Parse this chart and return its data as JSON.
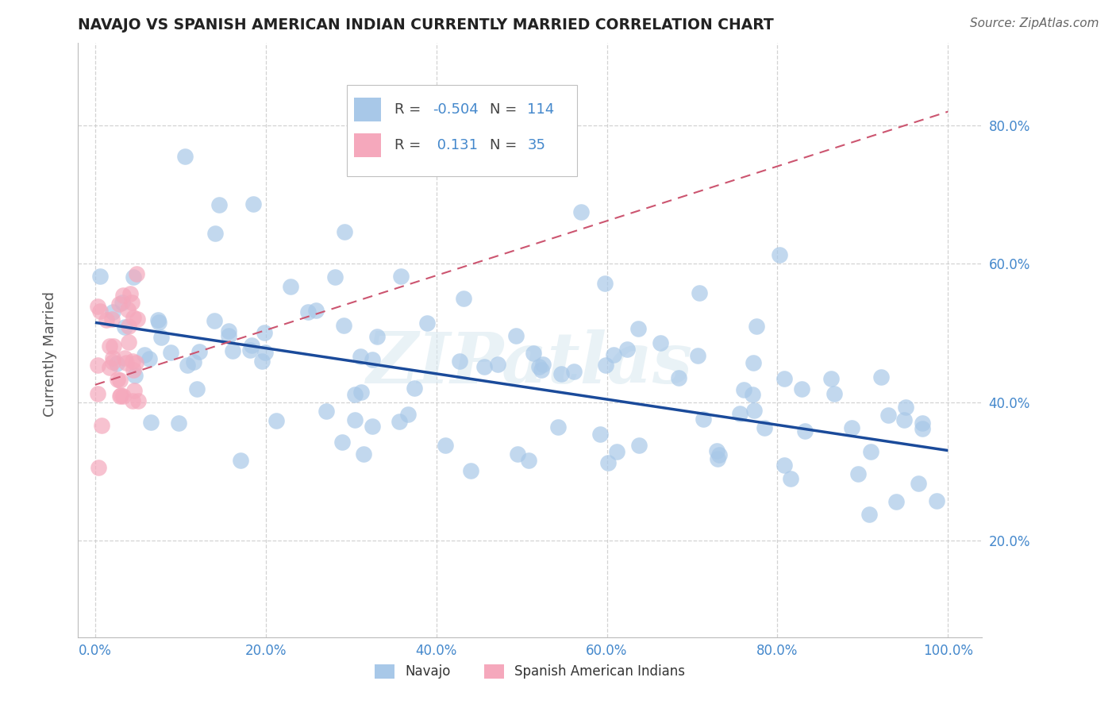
{
  "title": "NAVAJO VS SPANISH AMERICAN INDIAN CURRENTLY MARRIED CORRELATION CHART",
  "source_text": "Source: ZipAtlas.com",
  "ylabel": "Currently Married",
  "watermark": "ZIPatlas",
  "legend_navajo": "Navajo",
  "legend_spanish": "Spanish American Indians",
  "navajo_R": -0.504,
  "navajo_N": 114,
  "spanish_R": 0.131,
  "spanish_N": 35,
  "xlim": [
    -0.02,
    1.04
  ],
  "ylim": [
    0.06,
    0.92
  ],
  "x_ticks": [
    0.0,
    0.2,
    0.4,
    0.6,
    0.8,
    1.0
  ],
  "y_ticks": [
    0.2,
    0.4,
    0.6,
    0.8
  ],
  "navajo_color": "#a8c8e8",
  "spanish_color": "#f5a8bc",
  "navajo_line_color": "#1a4a9a",
  "spanish_line_color": "#cc5570",
  "title_color": "#222222",
  "tick_label_color": "#4488cc",
  "grid_color": "#cccccc",
  "background_color": "#ffffff",
  "navajo_trend_start_y": 0.515,
  "navajo_trend_end_y": 0.33,
  "spanish_trend_start_y": 0.425,
  "spanish_trend_end_y": 0.82,
  "legend_R_color": "#4488cc",
  "legend_N_color": "#4488cc"
}
